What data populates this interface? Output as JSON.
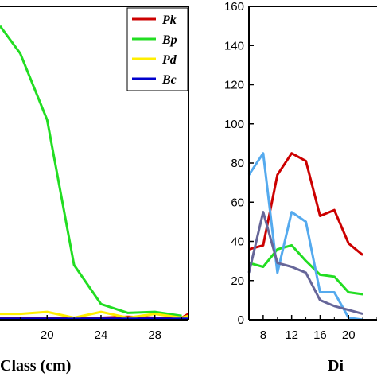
{
  "chart_data": [
    {
      "type": "line",
      "xlabel": "Class (cm)",
      "xlim": [
        16.5,
        30.5
      ],
      "ylim": [
        0,
        160
      ],
      "x_ticks": [
        20,
        24,
        28
      ],
      "legend": {
        "placement": "top-right",
        "entries": [
          "Pk",
          "Bp",
          "Pd",
          "Bc"
        ]
      },
      "series": [
        {
          "name": "Pk",
          "color": "#cc0000",
          "x": [
            16.5,
            18,
            20,
            22,
            24,
            26,
            28,
            30,
            30.5
          ],
          "y": [
            1,
            1,
            1,
            0.5,
            1,
            1.5,
            1,
            1,
            3
          ]
        },
        {
          "name": "Bp",
          "color": "#22dd22",
          "x": [
            16.5,
            18,
            20,
            22,
            24,
            26,
            28,
            30
          ],
          "y": [
            150,
            136,
            102,
            28,
            8,
            3.5,
            4,
            2
          ]
        },
        {
          "name": "Pd",
          "color": "#ffee00",
          "x": [
            16.5,
            18,
            20,
            22,
            24,
            26,
            28,
            30,
            30.5
          ],
          "y": [
            3,
            3,
            4,
            1,
            4,
            1,
            3,
            1,
            2
          ]
        },
        {
          "name": "Bc",
          "color": "#0000cc",
          "x": [
            16.5,
            18,
            20,
            22,
            24,
            26,
            28,
            30,
            30.5
          ],
          "y": [
            0.5,
            0.5,
            0.5,
            0.5,
            0.5,
            0.5,
            0.5,
            0.5,
            0.5
          ]
        }
      ]
    },
    {
      "type": "line",
      "xlabel": "Di",
      "xlim": [
        6,
        24
      ],
      "ylim": [
        0,
        160
      ],
      "x_ticks": [
        8,
        12,
        16,
        20
      ],
      "y_ticks": [
        0,
        20,
        40,
        60,
        80,
        100,
        120,
        140,
        160
      ],
      "series": [
        {
          "color": "#cc0000",
          "x": [
            6,
            8,
            10,
            12,
            14,
            16,
            18,
            20,
            22
          ],
          "y": [
            36,
            38,
            74,
            85,
            81,
            53,
            56,
            39,
            33
          ]
        },
        {
          "color": "#22dd22",
          "x": [
            6,
            8,
            10,
            12,
            14,
            16,
            18,
            20,
            22
          ],
          "y": [
            29,
            27,
            36,
            38,
            30,
            23,
            22,
            14,
            13
          ]
        },
        {
          "color": "#55aaee",
          "x": [
            6,
            8,
            10,
            12,
            14,
            16,
            18,
            20,
            22
          ],
          "y": [
            74,
            85,
            24,
            55,
            50,
            14,
            14,
            1,
            0
          ]
        },
        {
          "color": "#666699",
          "x": [
            6,
            8,
            10,
            12,
            14,
            16,
            18,
            20,
            22
          ],
          "y": [
            24,
            55,
            29,
            27,
            24,
            10,
            7,
            5,
            3
          ]
        }
      ]
    }
  ]
}
